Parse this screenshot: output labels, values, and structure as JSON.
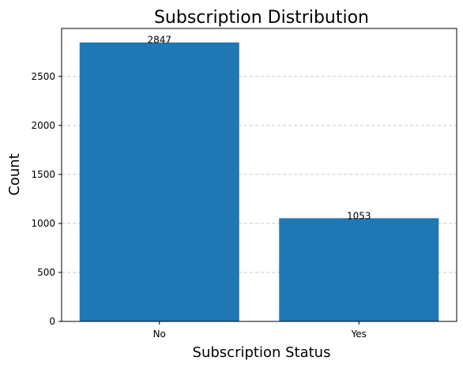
{
  "chart_data": {
    "type": "bar",
    "title": "Subscription Distribution",
    "xlabel": "Subscription Status",
    "ylabel": "Count",
    "categories": [
      "No",
      "Yes"
    ],
    "values": [
      2847,
      1053
    ],
    "data_labels": [
      "2847",
      "1053"
    ],
    "ylim": [
      0,
      2990
    ],
    "yticks": [
      0,
      500,
      1000,
      1500,
      2000,
      2500
    ],
    "ytick_labels": [
      "0",
      "500",
      "1000",
      "1500",
      "2000",
      "2500"
    ],
    "grid": "y-dashed",
    "legend": "none",
    "bar_color": "#1f77b4",
    "grid_color": "#c8c8c8"
  }
}
